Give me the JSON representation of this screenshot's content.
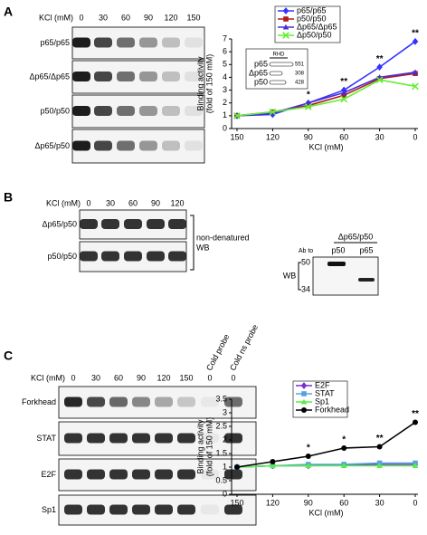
{
  "panels": [
    "A",
    "B",
    "C"
  ],
  "blots": [
    {
      "header": "KCl (mM)",
      "lanes": [
        "0",
        "30",
        "60",
        "90",
        "120",
        "150"
      ],
      "rows": [
        "p65/p65",
        "Δp65/Δp65",
        "p50/p50",
        "Δp65/p50"
      ]
    },
    {
      "header": "KCl (mM)",
      "lanes": [
        "0",
        "30",
        "60",
        "90",
        "120"
      ],
      "rows": [
        "Δp65/p50",
        "p50/p50"
      ],
      "bracket_label": [
        "non-denatured",
        "WB"
      ]
    },
    {
      "header": "KCl (mM)",
      "lanes": [
        "0",
        "30",
        "60",
        "90",
        "120",
        "150"
      ],
      "cold_lanes": [
        {
          "label": "0",
          "title": "Cold probe"
        },
        {
          "label": "0",
          "title": "Cold ns probe"
        }
      ],
      "rows": [
        "Forkhead",
        "STAT",
        "E2F",
        "Sp1"
      ]
    }
  ],
  "wb_inset": {
    "title": "Δp65/p50",
    "ab_label": "Ab to",
    "lanes": [
      "p50",
      "p65"
    ],
    "side_label": "WB",
    "markers": [
      50,
      34
    ]
  },
  "chart_data": [
    {
      "type": "line",
      "ylabel": [
        "Binding activity",
        "(fold of 150 mM)"
      ],
      "xlabel": "KCl (mM)",
      "categories": [
        "150",
        "120",
        "90",
        "60",
        "30",
        "0"
      ],
      "ylim": [
        0,
        7
      ],
      "yticks": [
        0,
        1,
        2,
        3,
        4,
        5,
        6,
        7
      ],
      "series": [
        {
          "name": "p65/p65",
          "color": "#3333ff",
          "marker": "diamond",
          "values": [
            1,
            1.1,
            2.0,
            3.0,
            4.8,
            6.8
          ]
        },
        {
          "name": "p50/p50",
          "color": "#b01c1c",
          "marker": "square",
          "values": [
            1,
            1.3,
            1.8,
            2.6,
            3.9,
            4.3
          ]
        },
        {
          "name": "Δp65/Δp65",
          "color": "#4a2fd6",
          "marker": "triangle",
          "values": [
            1,
            1.2,
            2.0,
            2.8,
            4.0,
            4.4
          ]
        },
        {
          "name": "Δp50/p50",
          "color": "#66ee33",
          "marker": "x",
          "values": [
            1,
            1.3,
            1.7,
            2.3,
            3.8,
            3.3
          ]
        }
      ],
      "annotations": [
        {
          "text": "*",
          "category": "90"
        },
        {
          "text": "**",
          "category": "60"
        },
        {
          "text": "**",
          "category": "30"
        },
        {
          "text": "**",
          "category": "0"
        }
      ],
      "inset": {
        "title": "RHD",
        "rows": [
          {
            "label": "p65",
            "value": 551
          },
          {
            "label": "Δp65",
            "value": 308
          },
          {
            "label": "p50",
            "value": 428
          }
        ]
      }
    },
    {
      "type": "line",
      "ylabel": [
        "Binding activity",
        "(fold of 150 mM)"
      ],
      "xlabel": "KCl (mM)",
      "categories": [
        "150",
        "120",
        "90",
        "60",
        "30",
        "0"
      ],
      "ylim": [
        0,
        3.5
      ],
      "yticks": [
        0,
        0.5,
        1,
        1.5,
        2,
        2.5,
        3,
        3.5
      ],
      "series": [
        {
          "name": "E2F",
          "color": "#7b2fd0",
          "marker": "diamond",
          "values": [
            1,
            1.05,
            1.05,
            1.08,
            1.1,
            1.1
          ]
        },
        {
          "name": "STAT",
          "color": "#5aa0e0",
          "marker": "square",
          "values": [
            1,
            1.05,
            1.1,
            1.1,
            1.15,
            1.15
          ]
        },
        {
          "name": "Sp1",
          "color": "#55ee44",
          "marker": "triangle",
          "values": [
            1,
            1.05,
            1.05,
            1.05,
            1.05,
            1.05
          ]
        },
        {
          "name": "Forkhead",
          "color": "#000000",
          "marker": "circle",
          "values": [
            1,
            1.2,
            1.4,
            1.7,
            1.75,
            2.65
          ]
        }
      ],
      "annotations": [
        {
          "text": "*",
          "category": "90"
        },
        {
          "text": "*",
          "category": "60"
        },
        {
          "text": "**",
          "category": "30"
        },
        {
          "text": "**",
          "category": "0"
        }
      ]
    }
  ]
}
